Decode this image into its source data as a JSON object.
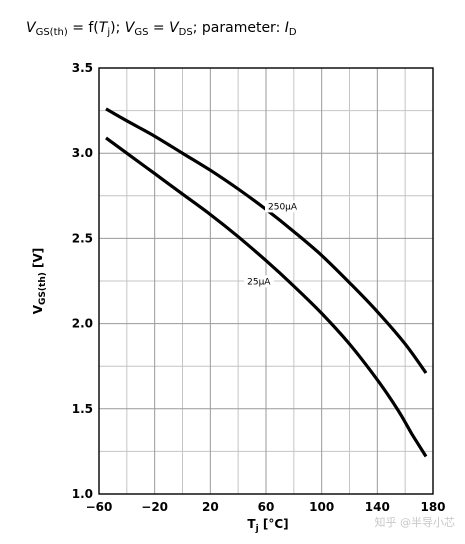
{
  "title": "VGS(th) = f(Tj); VGS = VDS; parameter: ID",
  "watermark": "知乎 @半导小芯",
  "chart_data": {
    "type": "line",
    "title": "VGS(th) = f(Tj); VGS = VDS; parameter: ID",
    "xlabel": "Tj [°C]",
    "ylabel": "VGS(th) [V]",
    "xlim": [
      -60,
      180
    ],
    "ylim": [
      1.0,
      3.5
    ],
    "x_ticks": [
      -60,
      -20,
      20,
      60,
      100,
      140,
      180
    ],
    "x_tick_labels": [
      "−60",
      "−20",
      "20",
      "60",
      "100",
      "140",
      "180"
    ],
    "y_ticks": [
      1.0,
      1.5,
      2.0,
      2.5,
      3.0,
      3.5
    ],
    "y_tick_labels": [
      "1.0",
      "1.5",
      "2.0",
      "2.5",
      "3.0",
      "3.5"
    ],
    "x_minor_step": 20,
    "y_minor_step": 0.25,
    "grid": true,
    "series": [
      {
        "name": "250μA",
        "x": [
          -55,
          -40,
          -20,
          0,
          20,
          40,
          60,
          80,
          100,
          120,
          140,
          160,
          175
        ],
        "y": [
          3.26,
          3.19,
          3.1,
          3.0,
          2.9,
          2.79,
          2.67,
          2.54,
          2.4,
          2.24,
          2.07,
          1.88,
          1.71
        ],
        "label_at": [
          60,
          2.67
        ]
      },
      {
        "name": "25μA",
        "x": [
          -55,
          -40,
          -20,
          0,
          20,
          40,
          60,
          80,
          100,
          120,
          140,
          155,
          165,
          175
        ],
        "y": [
          3.09,
          3.0,
          2.88,
          2.76,
          2.64,
          2.51,
          2.37,
          2.22,
          2.06,
          1.88,
          1.67,
          1.49,
          1.35,
          1.22
        ],
        "label_at": [
          45,
          2.23
        ]
      }
    ]
  }
}
